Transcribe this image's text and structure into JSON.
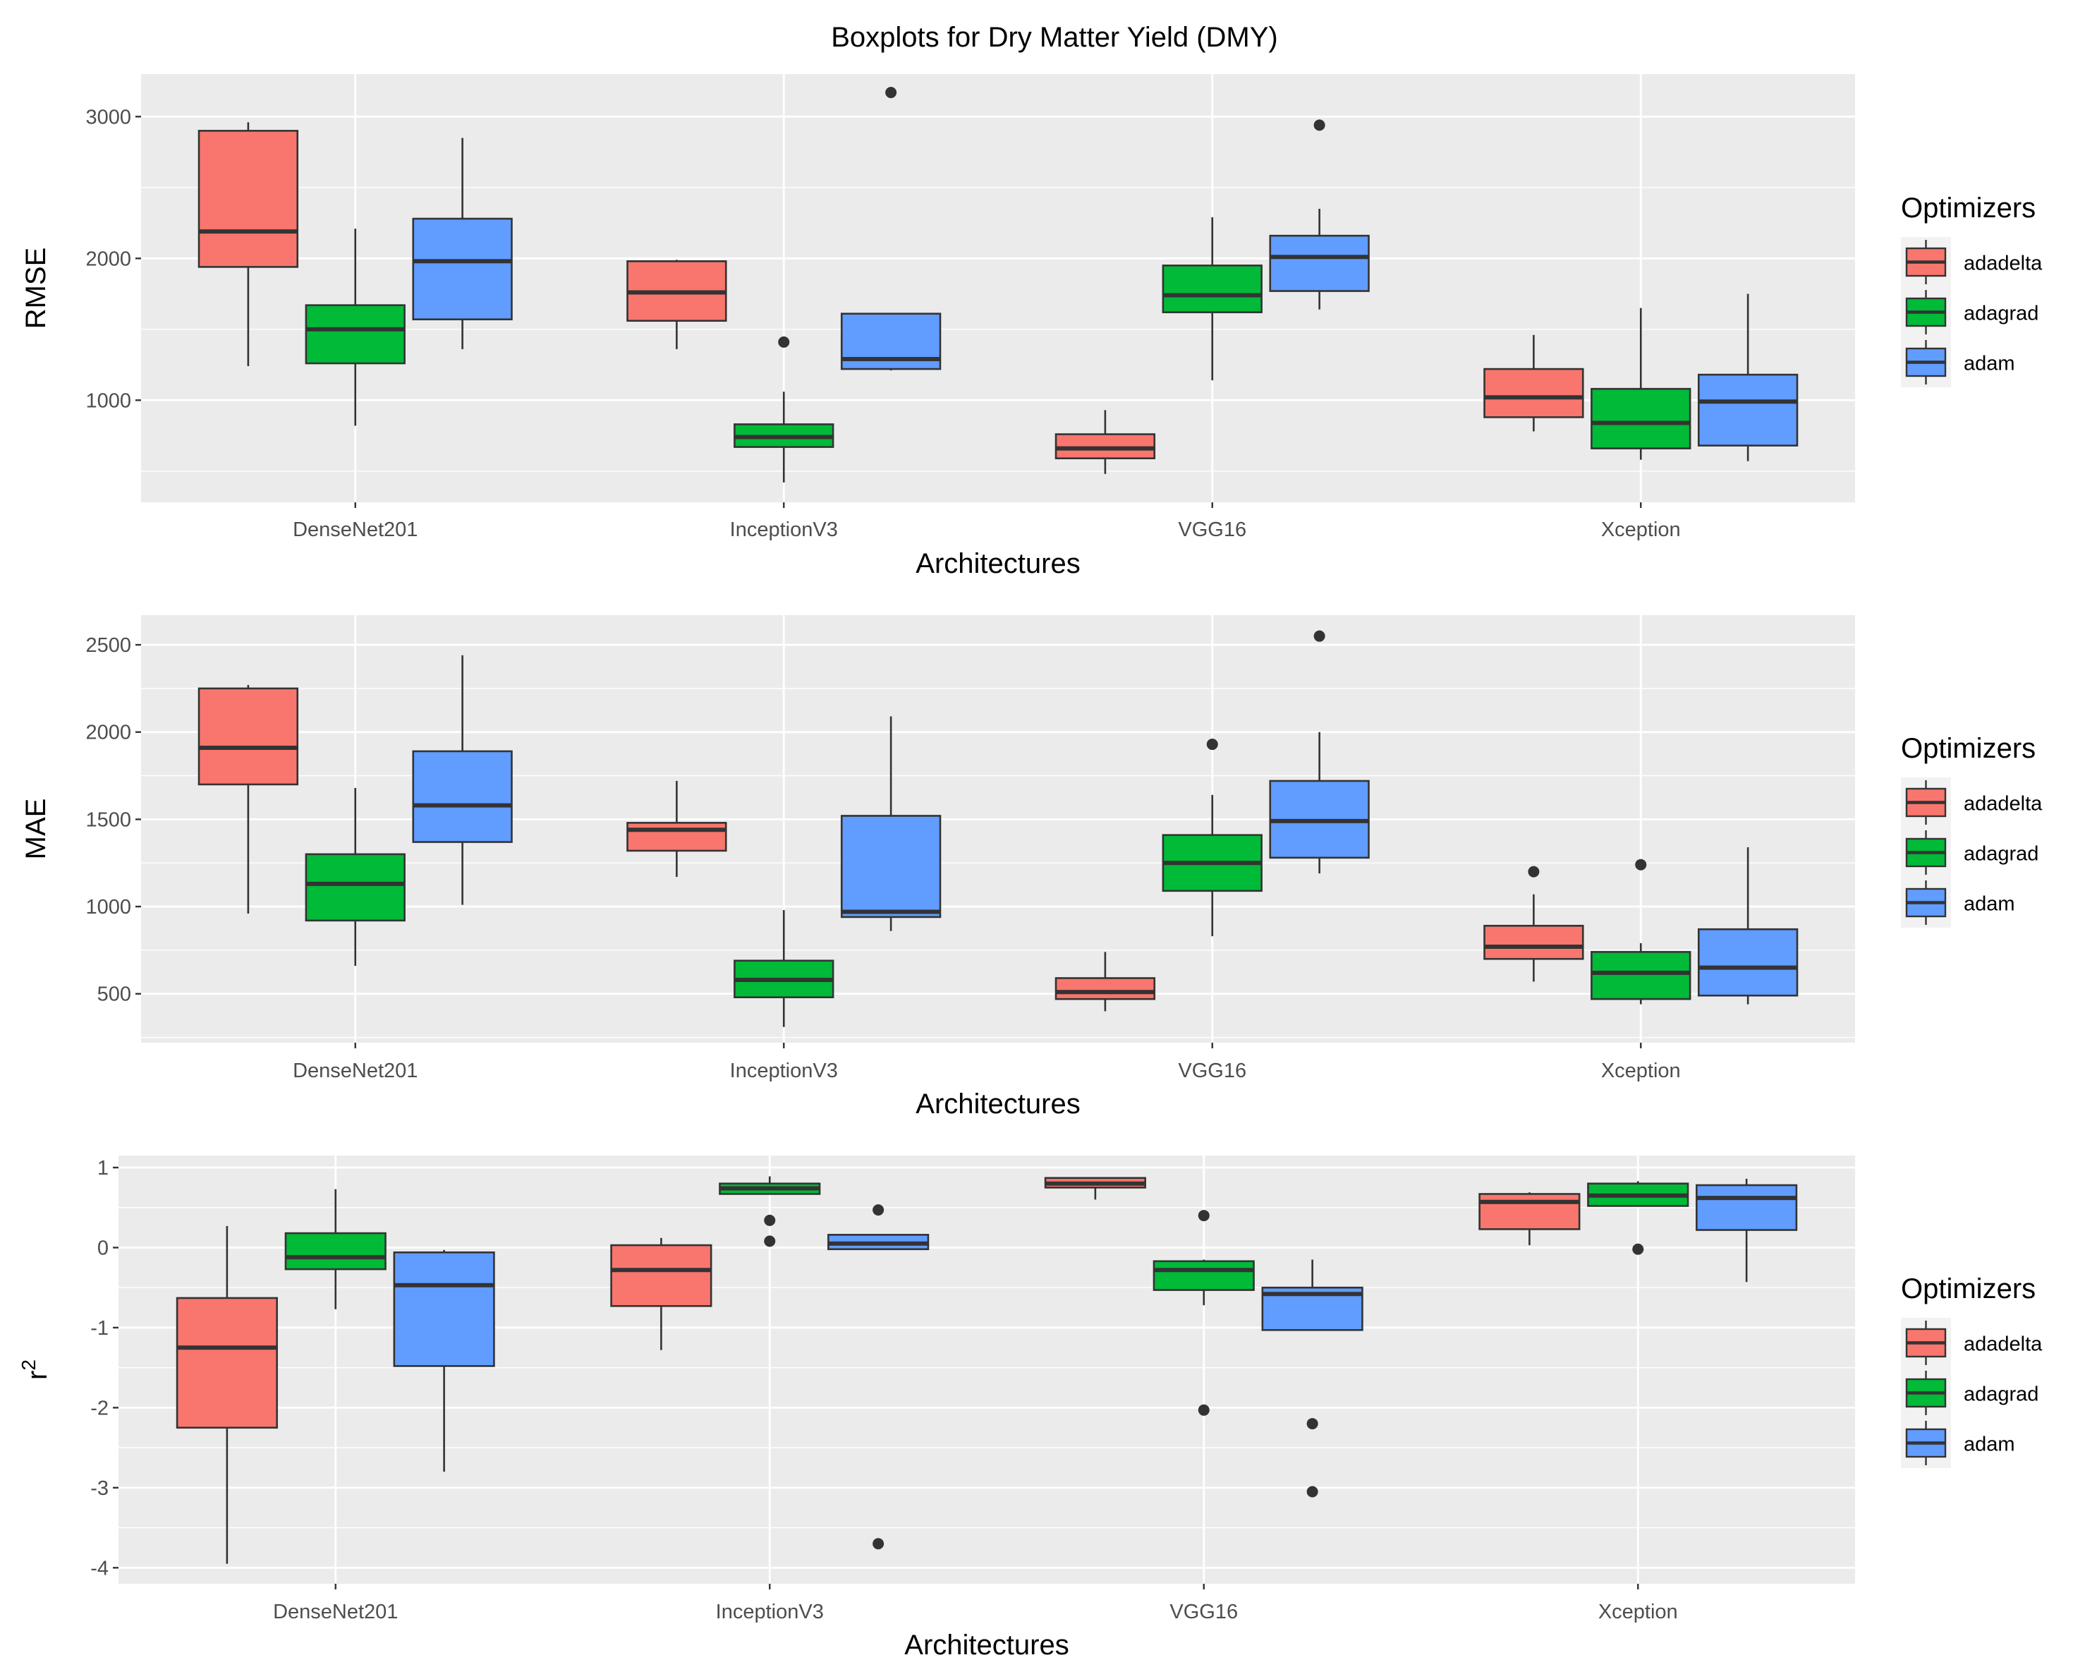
{
  "title": "Boxplots for Dry Matter Yield (DMY)",
  "legend": {
    "title": "Optimizers",
    "items": [
      {
        "key": "adadelta",
        "label": "adadelta",
        "color": "#F8766D"
      },
      {
        "key": "adagrad",
        "label": "adagrad",
        "color": "#00BA38"
      },
      {
        "key": "adam",
        "label": "adam",
        "color": "#619CFF"
      }
    ]
  },
  "chart_data": [
    {
      "type": "boxplot",
      "metric": "RMSE",
      "ylabel": "RMSE",
      "xlabel": "Architectures",
      "ylim": [
        280,
        3300
      ],
      "yticks": [
        1000,
        2000,
        3000
      ],
      "categories": [
        "DenseNet201",
        "InceptionV3",
        "VGG16",
        "Xception"
      ],
      "series": [
        {
          "name": "adadelta",
          "boxes": [
            {
              "low": 1240,
              "q1": 1940,
              "median": 2190,
              "q3": 2900,
              "high": 2960,
              "outliers": []
            },
            {
              "low": 1360,
              "q1": 1560,
              "median": 1760,
              "q3": 1980,
              "high": 1990,
              "outliers": []
            },
            {
              "low": 480,
              "q1": 590,
              "median": 660,
              "q3": 760,
              "high": 930,
              "outliers": []
            },
            {
              "low": 780,
              "q1": 880,
              "median": 1020,
              "q3": 1220,
              "high": 1460,
              "outliers": []
            }
          ]
        },
        {
          "name": "adagrad",
          "boxes": [
            {
              "low": 820,
              "q1": 1260,
              "median": 1500,
              "q3": 1670,
              "high": 2210,
              "outliers": []
            },
            {
              "low": 420,
              "q1": 670,
              "median": 740,
              "q3": 830,
              "high": 1060,
              "outliers": [
                1410
              ]
            },
            {
              "low": 1140,
              "q1": 1620,
              "median": 1740,
              "q3": 1950,
              "high": 2290,
              "outliers": []
            },
            {
              "low": 580,
              "q1": 660,
              "median": 840,
              "q3": 1080,
              "high": 1650,
              "outliers": []
            }
          ]
        },
        {
          "name": "adam",
          "boxes": [
            {
              "low": 1360,
              "q1": 1570,
              "median": 1980,
              "q3": 2280,
              "high": 2850,
              "outliers": []
            },
            {
              "low": 1210,
              "q1": 1220,
              "median": 1290,
              "q3": 1610,
              "high": 1610,
              "outliers": [
                3170
              ]
            },
            {
              "low": 1640,
              "q1": 1770,
              "median": 2010,
              "q3": 2160,
              "high": 2350,
              "outliers": [
                2940
              ]
            },
            {
              "low": 570,
              "q1": 680,
              "median": 990,
              "q3": 1180,
              "high": 1750,
              "outliers": []
            }
          ]
        }
      ]
    },
    {
      "type": "boxplot",
      "metric": "MAE",
      "ylabel": "MAE",
      "xlabel": "Architectures",
      "ylim": [
        220,
        2670
      ],
      "yticks": [
        500,
        1000,
        1500,
        2000,
        2500
      ],
      "categories": [
        "DenseNet201",
        "InceptionV3",
        "VGG16",
        "Xception"
      ],
      "series": [
        {
          "name": "adadelta",
          "boxes": [
            {
              "low": 960,
              "q1": 1700,
              "median": 1910,
              "q3": 2250,
              "high": 2270,
              "outliers": []
            },
            {
              "low": 1170,
              "q1": 1320,
              "median": 1440,
              "q3": 1480,
              "high": 1720,
              "outliers": []
            },
            {
              "low": 400,
              "q1": 470,
              "median": 510,
              "q3": 590,
              "high": 740,
              "outliers": []
            },
            {
              "low": 570,
              "q1": 700,
              "median": 770,
              "q3": 890,
              "high": 1070,
              "outliers": [
                1200
              ]
            }
          ]
        },
        {
          "name": "adagrad",
          "boxes": [
            {
              "low": 660,
              "q1": 920,
              "median": 1130,
              "q3": 1300,
              "high": 1680,
              "outliers": []
            },
            {
              "low": 310,
              "q1": 480,
              "median": 580,
              "q3": 690,
              "high": 980,
              "outliers": []
            },
            {
              "low": 830,
              "q1": 1090,
              "median": 1250,
              "q3": 1410,
              "high": 1640,
              "outliers": [
                1930
              ]
            },
            {
              "low": 440,
              "q1": 470,
              "median": 620,
              "q3": 740,
              "high": 790,
              "outliers": [
                1240
              ]
            }
          ]
        },
        {
          "name": "adam",
          "boxes": [
            {
              "low": 1010,
              "q1": 1370,
              "median": 1580,
              "q3": 1890,
              "high": 2440,
              "outliers": []
            },
            {
              "low": 860,
              "q1": 940,
              "median": 970,
              "q3": 1520,
              "high": 2090,
              "outliers": []
            },
            {
              "low": 1190,
              "q1": 1280,
              "median": 1490,
              "q3": 1720,
              "high": 2000,
              "outliers": [
                2550
              ]
            },
            {
              "low": 440,
              "q1": 490,
              "median": 650,
              "q3": 870,
              "high": 1340,
              "outliers": []
            }
          ]
        }
      ]
    },
    {
      "type": "boxplot",
      "metric": "r2",
      "ylabel": "r",
      "ylabel_sup": "2",
      "xlabel": "Architectures",
      "ylim": [
        -4.2,
        1.15
      ],
      "yticks": [
        -4,
        -3,
        -2,
        -1,
        0,
        1
      ],
      "categories": [
        "DenseNet201",
        "InceptionV3",
        "VGG16",
        "Xception"
      ],
      "series": [
        {
          "name": "adadelta",
          "boxes": [
            {
              "low": -3.95,
              "q1": -2.25,
              "median": -1.25,
              "q3": -0.63,
              "high": 0.27,
              "outliers": []
            },
            {
              "low": -1.28,
              "q1": -0.73,
              "median": -0.28,
              "q3": 0.03,
              "high": 0.12,
              "outliers": []
            },
            {
              "low": 0.6,
              "q1": 0.75,
              "median": 0.8,
              "q3": 0.87,
              "high": 0.87,
              "outliers": []
            },
            {
              "low": 0.03,
              "q1": 0.23,
              "median": 0.57,
              "q3": 0.67,
              "high": 0.69,
              "outliers": []
            }
          ]
        },
        {
          "name": "adagrad",
          "boxes": [
            {
              "low": -0.77,
              "q1": -0.27,
              "median": -0.12,
              "q3": 0.18,
              "high": 0.73,
              "outliers": []
            },
            {
              "low": 0.67,
              "q1": 0.67,
              "median": 0.74,
              "q3": 0.8,
              "high": 0.89,
              "outliers": [
                0.34,
                0.08
              ]
            },
            {
              "low": -0.72,
              "q1": -0.53,
              "median": -0.28,
              "q3": -0.17,
              "high": -0.15,
              "outliers": [
                0.4,
                -2.03
              ]
            },
            {
              "low": 0.52,
              "q1": 0.52,
              "median": 0.65,
              "q3": 0.8,
              "high": 0.83,
              "outliers": [
                -0.02
              ]
            }
          ]
        },
        {
          "name": "adam",
          "boxes": [
            {
              "low": -2.8,
              "q1": -1.48,
              "median": -0.47,
              "q3": -0.06,
              "high": -0.03,
              "outliers": []
            },
            {
              "low": -0.02,
              "q1": -0.02,
              "median": 0.05,
              "q3": 0.16,
              "high": 0.16,
              "outliers": [
                0.47,
                -3.7
              ]
            },
            {
              "low": -1.03,
              "q1": -1.03,
              "median": -0.58,
              "q3": -0.5,
              "high": -0.15,
              "outliers": [
                -2.2,
                -3.05
              ]
            },
            {
              "low": -0.43,
              "q1": 0.22,
              "median": 0.62,
              "q3": 0.78,
              "high": 0.86,
              "outliers": []
            }
          ]
        }
      ]
    }
  ]
}
